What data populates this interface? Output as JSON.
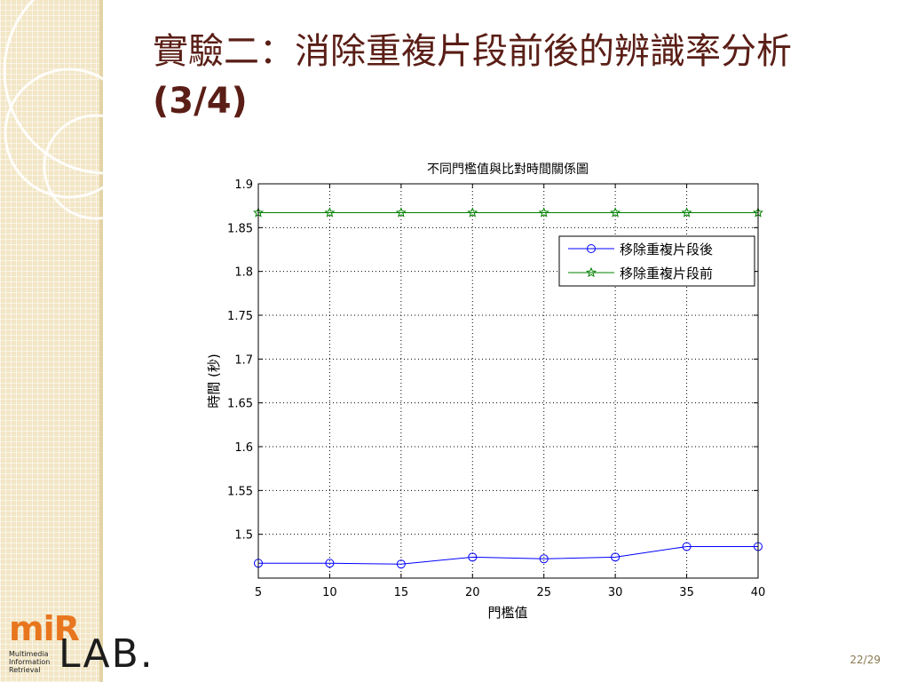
{
  "slide": {
    "title_main": "實驗二：消除重複片段前後的辨識率分析",
    "title_suffix": "(3/4)",
    "page_number": "22/29",
    "accent_color": "#5a1e16"
  },
  "logo": {
    "mark": "miR",
    "lines": [
      "Multimedia",
      "Information",
      "Retrieval"
    ],
    "lab": "LAB.",
    "mark_color": "#e8761e"
  },
  "chart_data": {
    "type": "line",
    "title": "不同門檻值與比對時間關係圖",
    "xlabel": "門檻值",
    "ylabel": "時間 (秒)",
    "x": [
      5,
      10,
      15,
      20,
      25,
      30,
      35,
      40
    ],
    "xlim": [
      5,
      40
    ],
    "ylim": [
      1.45,
      1.9
    ],
    "xticks": [
      5,
      10,
      15,
      20,
      25,
      30,
      35,
      40
    ],
    "yticks": [
      1.5,
      1.55,
      1.6,
      1.65,
      1.7,
      1.75,
      1.8,
      1.85,
      1.9
    ],
    "grid": true,
    "legend_position": "top-right",
    "series": [
      {
        "name": "移除重複片段後",
        "values": [
          1.467,
          1.467,
          1.466,
          1.474,
          1.472,
          1.474,
          1.486,
          1.486
        ],
        "color": "#0000ff",
        "marker": "circle"
      },
      {
        "name": "移除重複片段前",
        "values": [
          1.867,
          1.867,
          1.867,
          1.867,
          1.867,
          1.867,
          1.867,
          1.867
        ],
        "color": "#008000",
        "marker": "star"
      }
    ]
  }
}
